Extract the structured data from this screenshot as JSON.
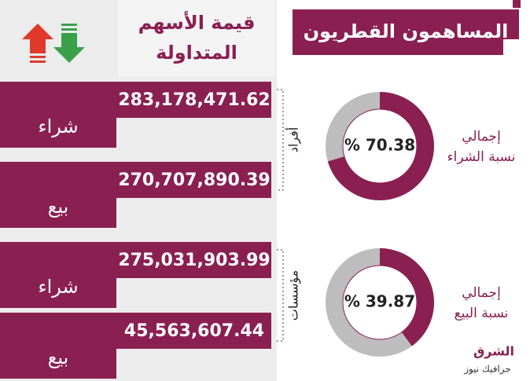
{
  "header": {
    "title": "المساهمون القطريون"
  },
  "column_title": [
    "قيمة الأسهم",
    "المتداولة"
  ],
  "groups": [
    {
      "label": "أفراد",
      "rows": [
        {
          "action": "شراء",
          "value": "283,178,471.62"
        },
        {
          "action": "بيع",
          "value": "270,707,890.39"
        }
      ]
    },
    {
      "label": "مؤسسات",
      "rows": [
        {
          "action": "شراء",
          "value": "275,031,903.99"
        },
        {
          "action": "بيع",
          "value": "45,563,607.44"
        }
      ]
    }
  ],
  "donuts": [
    {
      "label": [
        "إجمالي",
        "نسبة الشراء"
      ],
      "percent": {
        "value": 70.38,
        "label": "% 70.38"
      }
    },
    {
      "label": [
        "إجمالي",
        "نسبة البيع"
      ],
      "percent": {
        "value": 39.87,
        "label": "% 39.87"
      }
    }
  ],
  "logo": {
    "name": "الشرق",
    "sub": "جرافيك نيوز"
  }
}
